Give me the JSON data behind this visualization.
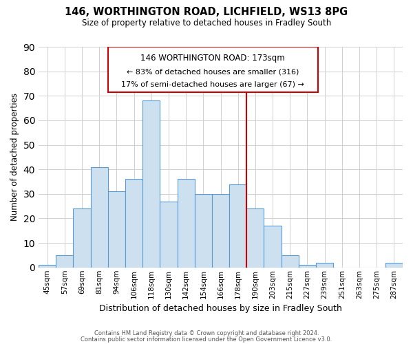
{
  "title": "146, WORTHINGTON ROAD, LICHFIELD, WS13 8PG",
  "subtitle": "Size of property relative to detached houses in Fradley South",
  "xlabel": "Distribution of detached houses by size in Fradley South",
  "ylabel": "Number of detached properties",
  "bar_labels": [
    "45sqm",
    "57sqm",
    "69sqm",
    "81sqm",
    "94sqm",
    "106sqm",
    "118sqm",
    "130sqm",
    "142sqm",
    "154sqm",
    "166sqm",
    "178sqm",
    "190sqm",
    "203sqm",
    "215sqm",
    "227sqm",
    "239sqm",
    "251sqm",
    "263sqm",
    "275sqm",
    "287sqm"
  ],
  "bar_values": [
    1,
    5,
    24,
    41,
    31,
    36,
    68,
    27,
    36,
    30,
    30,
    34,
    24,
    17,
    5,
    1,
    2,
    0,
    0,
    0,
    2
  ],
  "bar_color": "#cce0f0",
  "bar_edge_color": "#5b9bd5",
  "ylim": [
    0,
    90
  ],
  "yticks": [
    0,
    10,
    20,
    30,
    40,
    50,
    60,
    70,
    80,
    90
  ],
  "vline_x_index": 11.5,
  "vline_color": "#cc0000",
  "annotation_title": "146 WORTHINGTON ROAD: 173sqm",
  "annotation_line1": "← 83% of detached houses are smaller (316)",
  "annotation_line2": "17% of semi-detached houses are larger (67) →",
  "annotation_box_color": "#cc0000",
  "footer_line1": "Contains HM Land Registry data © Crown copyright and database right 2024.",
  "footer_line2": "Contains public sector information licensed under the Open Government Licence v3.0.",
  "background_color": "#ffffff",
  "grid_color": "#d0d0d0"
}
